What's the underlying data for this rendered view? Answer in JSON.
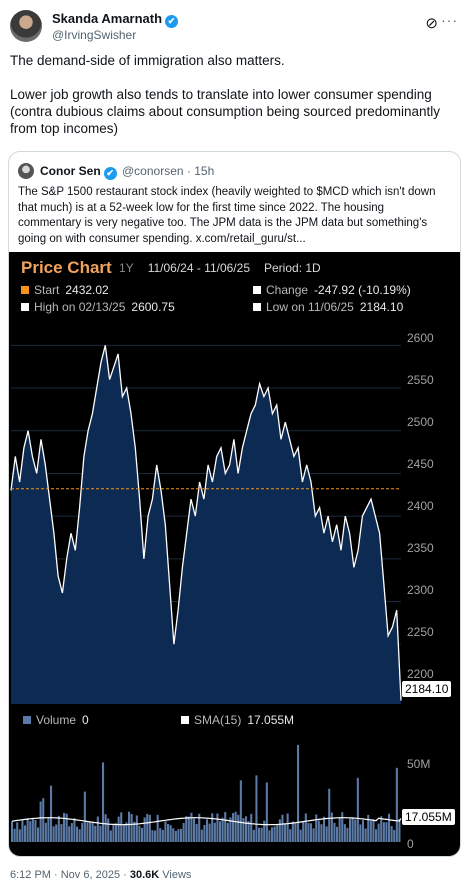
{
  "author": {
    "name": "Skanda Amarnath",
    "handle": "@IrvingSwisher",
    "verified_icon": "✔"
  },
  "tweet": {
    "paragraphs": [
      "The demand-side of immigration also matters.",
      "Lower job growth also tends to translate into lower consumer spending (contra dubious claims about consumption being sourced predominantly from top incomes)"
    ]
  },
  "quote": {
    "name": "Conor Sen",
    "handle": "@conorsen",
    "time": "15h",
    "text": "The S&P 1500 restaurant stock index (heavily weighted to $MCD which isn't down that much) is at a 52-week low for the first time since 2022. The housing commentary is very negative too. The JPM data is the JPM data but something's going on with consumer spending.  x.com/retail_guru/st..."
  },
  "chart": {
    "title": "Price Chart",
    "range": "1Y",
    "dates": "11/06/24 - 11/06/25",
    "period": "Period: 1D",
    "start_label": "Start",
    "start_value": "2432.02",
    "change_label": "Change",
    "change_value": "-247.92 (-10.19%)",
    "high_label": "High on 02/13/25",
    "high_value": "2600.75",
    "low_label": "Low on 11/06/25",
    "low_value": "2184.10",
    "price_tag": "2184.10",
    "volume_label": "Volume",
    "volume_value": "0",
    "sma_label": "SMA(15)",
    "sma_value": "17.055M",
    "sma_tag": "17.055M",
    "colors": {
      "accent": "#f0a35e",
      "start": "#f7931a",
      "area": "#0d2a52",
      "line": "#ffffff",
      "volume": "#5b7aa6"
    }
  },
  "chart_data": {
    "type": "area",
    "y_ticks": [
      "2600",
      "2550",
      "2500",
      "2450",
      "2400",
      "2350",
      "2300",
      "2250",
      "2200"
    ],
    "ylim": [
      2180,
      2625
    ],
    "start_reference": 2432.02,
    "price": [
      2430,
      2470,
      2440,
      2480,
      2500,
      2470,
      2450,
      2490,
      2460,
      2420,
      2380,
      2330,
      2310,
      2350,
      2380,
      2360,
      2410,
      2470,
      2500,
      2520,
      2550,
      2580,
      2600,
      2560,
      2575,
      2590,
      2540,
      2550,
      2520,
      2480,
      2420,
      2350,
      2400,
      2420,
      2460,
      2430,
      2390,
      2320,
      2250,
      2290,
      2340,
      2380,
      2420,
      2400,
      2440,
      2420,
      2460,
      2440,
      2470,
      2480,
      2450,
      2460,
      2490,
      2450,
      2480,
      2500,
      2520,
      2530,
      2555,
      2540,
      2550,
      2520,
      2530,
      2490,
      2510,
      2490,
      2470,
      2480,
      2440,
      2460,
      2440,
      2400,
      2410,
      2380,
      2400,
      2370,
      2390,
      2360,
      2400,
      2380,
      2340,
      2360,
      2400,
      2410,
      2420,
      2400,
      2380,
      2320,
      2260,
      2270,
      2290,
      2184.1
    ],
    "volume_ticks": [
      "50M",
      "0"
    ],
    "volume_ylim": [
      0,
      75
    ],
    "sma_final": 17.055
  },
  "footer": {
    "time": "6:12 PM · Nov 6, 2025 · ",
    "views": "30.6K",
    "views_label": " Views"
  }
}
